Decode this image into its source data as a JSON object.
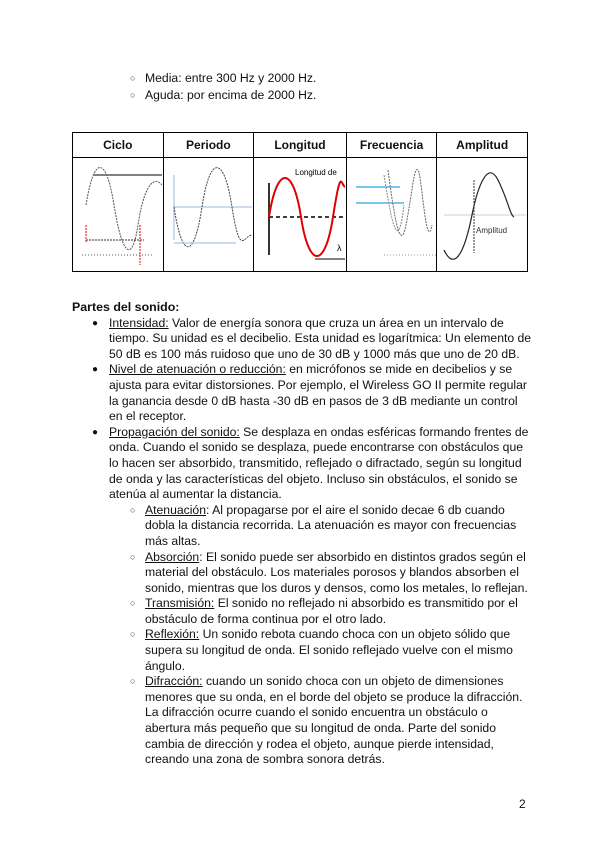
{
  "top_list": [
    "Media:  entre 300 Hz y 2000 Hz.",
    "Aguda: por encima de 2000 Hz."
  ],
  "table": {
    "headers": [
      "Ciclo",
      "Periodo",
      "Longitud",
      "Frecuencia",
      "Amplitud"
    ],
    "image_labels": {
      "longitud": "Longitud de",
      "lambda": "λ",
      "amplitud": "Amplitud"
    }
  },
  "section": {
    "title": "Partes del sonido:",
    "items": [
      {
        "term": "Intensidad:",
        "text": " Valor de energía sonora que cruza un área en un intervalo de tiempo. Su unidad es el decibelio. Esta unidad es logarítmica: Un elemento de 50 dB es 100 más ruidoso que uno de 30 dB y 1000 más que uno de 20 dB."
      },
      {
        "term": "Nivel de atenuación o reducción:",
        "text": " en micrófonos se mide en decibelios y se ajusta para evitar distorsiones. Por ejemplo, el Wireless GO II permite regular la ganancia desde 0 dB hasta -30 dB en pasos de 3 dB mediante un control en el receptor."
      },
      {
        "term": "Propagación del sonido:",
        "text": " Se desplaza en ondas esféricas formando frentes de onda. Cuando el sonido se desplaza, puede encontrarse con obstáculos que lo hacen ser absorbido, transmitido, reflejado o difractado, según su longitud de onda y las características del objeto. Incluso sin obstáculos, el sonido se atenúa al aumentar la distancia."
      }
    ],
    "sub_items": [
      {
        "term": "Atenuación",
        "text": ": Al propagarse por el aire el sonido decae 6 db cuando dobla la distancia recorrida. La atenuación es mayor con frecuencias más altas."
      },
      {
        "term": "Absorción",
        "text": ": El sonido puede ser absorbido en distintos grados según el material del obstáculo. Los materiales porosos y blandos absorben el sonido, mientras que los duros y densos, como los metales, lo reflejan."
      },
      {
        "term": "Transmisión:",
        "text": " El sonido no reflejado ni absorbido es transmitido por el obstáculo de forma continua por el otro lado."
      },
      {
        "term": "Reflexión:",
        "text": " Un sonido rebota cuando choca con un objeto sólido que supera su longitud de onda. El sonido reflejado vuelve con el mismo ángulo."
      },
      {
        "term": "Difracción:",
        "text": " cuando un sonido choca con un objeto de dimensiones menores que su onda, en el borde del objeto se produce la difracción. La difracción ocurre cuando el sonido encuentra un obstáculo o abertura más pequeño que su longitud de onda. Parte del sonido cambia de dirección y rodea el objeto, aunque pierde intensidad, creando una zona de sombra sonora detrás."
      }
    ]
  },
  "page_number": "2",
  "colors": {
    "wave_red": "#e00000",
    "axis_blue": "#9db4e0",
    "arrow_blue": "#4fb3e8"
  }
}
